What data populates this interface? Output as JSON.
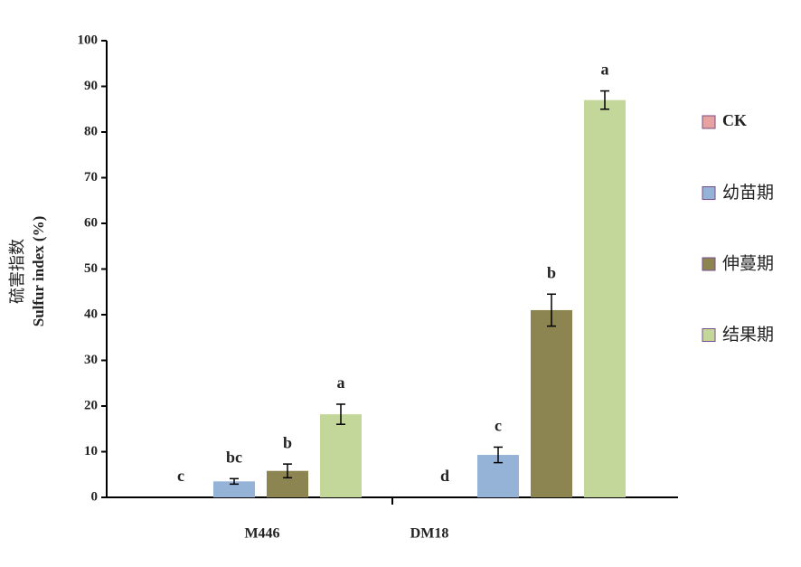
{
  "chart_data": {
    "type": "bar",
    "y_label": [
      "硫害指数",
      "Sulfur index (%)"
    ],
    "categories": [
      "M446",
      "DM18"
    ],
    "series": [
      {
        "name": "CK",
        "color": "#e6a3a0",
        "values": [
          0,
          0
        ],
        "errors": [
          0,
          0
        ],
        "labels": [
          "c",
          "d"
        ]
      },
      {
        "name": "幼苗期",
        "color": "#95b3d7",
        "values": [
          3.5,
          9.3
        ],
        "errors": [
          0.6,
          1.7
        ],
        "labels": [
          "bc",
          "c"
        ]
      },
      {
        "name": "伸蔓期",
        "color": "#8c8552",
        "values": [
          5.8,
          41
        ],
        "errors": [
          1.5,
          3.5
        ],
        "labels": [
          "b",
          "b"
        ]
      },
      {
        "name": "结果期",
        "color": "#c4d79b",
        "values": [
          18.2,
          87
        ],
        "errors": [
          2.2,
          2
        ],
        "labels": [
          "a",
          "a"
        ]
      }
    ],
    "ylim": [
      0,
      100
    ],
    "yticks": [
      0,
      10,
      20,
      30,
      40,
      50,
      60,
      70,
      80,
      90,
      100
    ]
  }
}
